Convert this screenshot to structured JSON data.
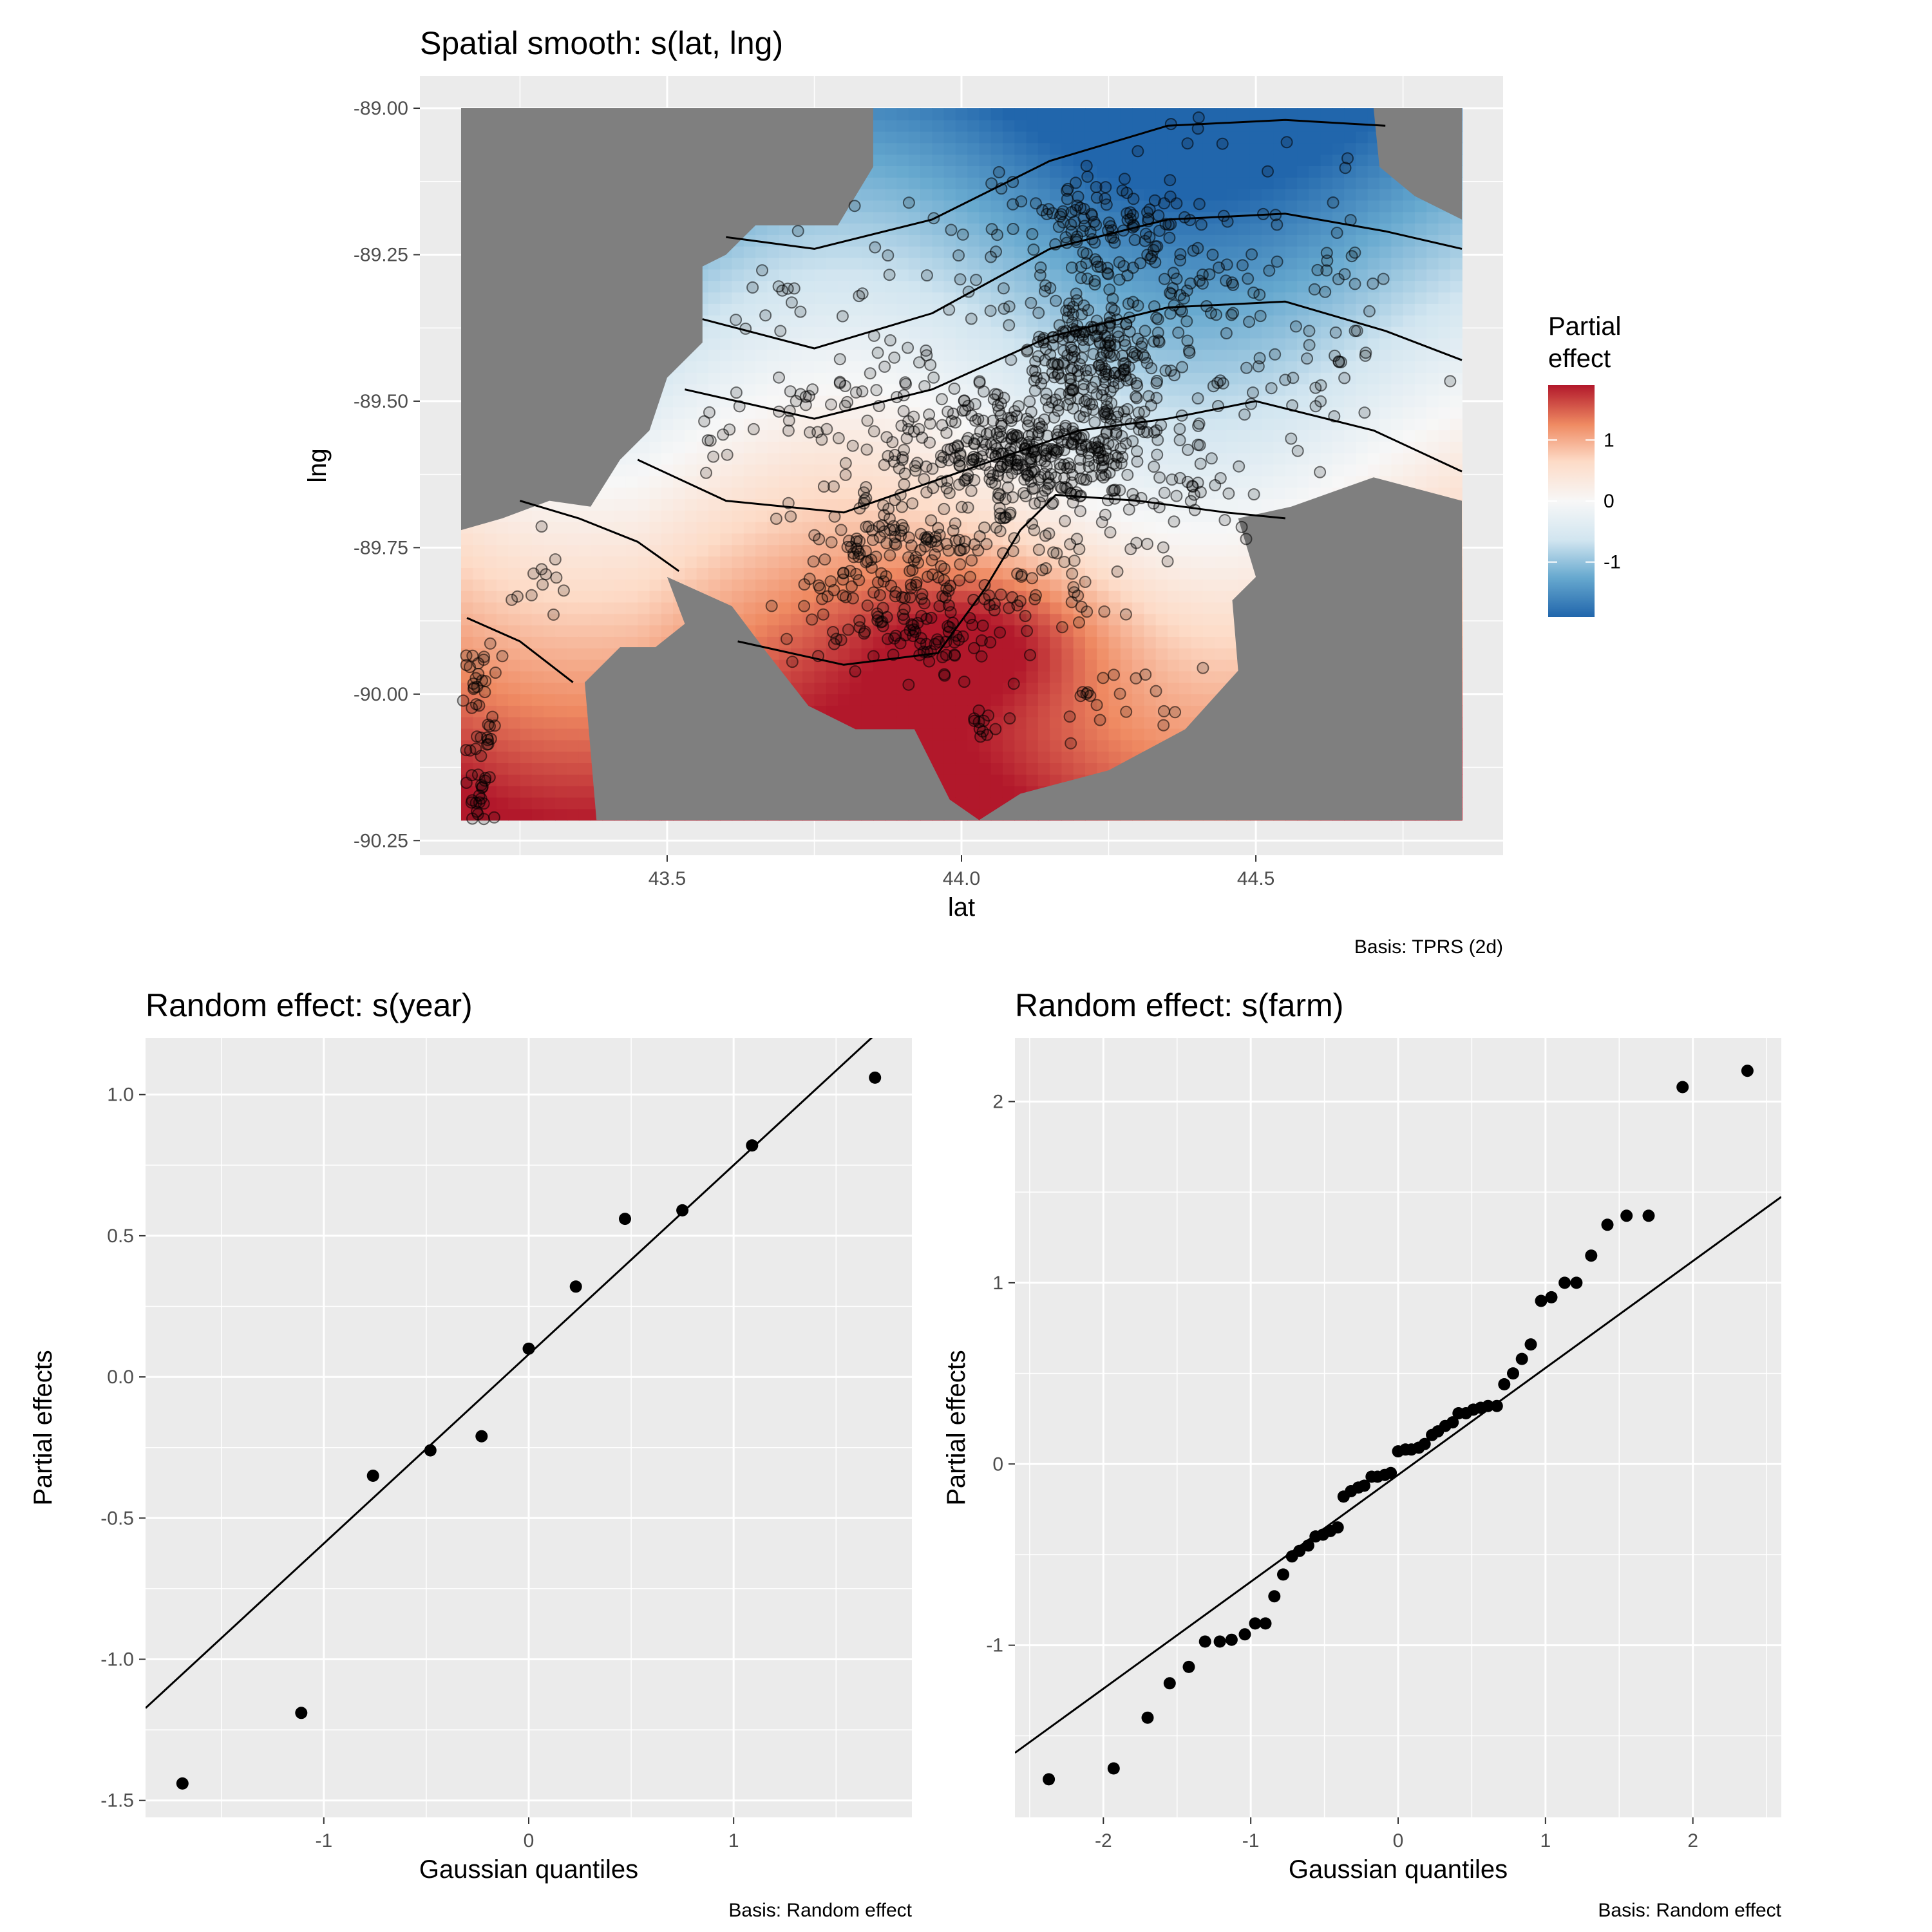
{
  "chart_data": [
    {
      "type": "heatmap",
      "title": "Spatial smooth: s(lat, lng)",
      "xlabel": "lat",
      "ylabel": "lng",
      "caption": "Basis: TPRS (2d)",
      "xlim": [
        43.08,
        44.92
      ],
      "ylim": [
        -90.275,
        -88.945
      ],
      "x_ticks": [
        43.5,
        44.0,
        44.5
      ],
      "x_tick_labels": [
        "43.5",
        "44.0",
        "44.5"
      ],
      "y_ticks": [
        -89.0,
        -89.25,
        -89.5,
        -89.75,
        -90.0,
        -90.25
      ],
      "y_tick_labels": [
        "-89.00",
        "-89.25",
        "-89.50",
        "-89.75",
        "-90.00",
        "-90.25"
      ],
      "legend": {
        "title_lines": [
          "Partial",
          "effect"
        ],
        "range": [
          -1.9,
          1.9
        ],
        "ticks": [
          1,
          0,
          -1
        ],
        "tick_labels": [
          "1",
          "0",
          "-1"
        ],
        "colors": [
          "#b2182b",
          "#ef8a62",
          "#fddbc7",
          "#f7f7f7",
          "#d1e5f0",
          "#67a9cf",
          "#2166ac"
        ],
        "placement": "right"
      },
      "grid": true
    },
    {
      "type": "scatter",
      "title": "Random effect: s(year)",
      "xlabel": "Gaussian quantiles",
      "ylabel": "Partial effects",
      "caption": "Basis: Random effect",
      "xlim": [
        -1.87,
        1.87
      ],
      "ylim": [
        -1.56,
        1.2
      ],
      "x_ticks": [
        -1,
        0,
        1
      ],
      "x_tick_labels": [
        "-1",
        "0",
        "1"
      ],
      "y_ticks": [
        1.0,
        0.5,
        0.0,
        -0.5,
        -1.0,
        -1.5
      ],
      "y_tick_labels": [
        "1.0",
        "0.5",
        "0.0",
        "-0.5",
        "-1.0",
        "-1.5"
      ],
      "points": [
        [
          -1.69,
          -1.44
        ],
        [
          -1.11,
          -1.19
        ],
        [
          -0.76,
          -0.35
        ],
        [
          -0.48,
          -0.26
        ],
        [
          -0.23,
          -0.21
        ],
        [
          0.0,
          0.1
        ],
        [
          0.23,
          0.32
        ],
        [
          0.47,
          0.56
        ],
        [
          0.75,
          0.59
        ],
        [
          1.09,
          0.82
        ],
        [
          1.69,
          1.06
        ]
      ],
      "reference_line": {
        "intercept": 0.08,
        "slope": 0.67
      },
      "grid": true
    },
    {
      "type": "scatter",
      "title": "Random effect: s(farm)",
      "xlabel": "Gaussian quantiles",
      "ylabel": "Partial effects",
      "caption": "Basis: Random effect",
      "xlim": [
        -2.6,
        2.6
      ],
      "ylim": [
        -1.95,
        2.35
      ],
      "x_ticks": [
        -2,
        -1,
        0,
        1,
        2
      ],
      "x_tick_labels": [
        "-2",
        "-1",
        "0",
        "1",
        "2"
      ],
      "y_ticks": [
        2,
        1,
        0,
        -1
      ],
      "y_tick_labels": [
        "2",
        "1",
        "0",
        "-1"
      ],
      "points": [
        [
          -2.37,
          -1.74
        ],
        [
          -1.93,
          -1.68
        ],
        [
          -1.7,
          -1.4
        ],
        [
          -1.55,
          -1.21
        ],
        [
          -1.42,
          -1.12
        ],
        [
          -1.31,
          -0.98
        ],
        [
          -1.21,
          -0.98
        ],
        [
          -1.13,
          -0.97
        ],
        [
          -1.04,
          -0.94
        ],
        [
          -0.97,
          -0.88
        ],
        [
          -0.9,
          -0.88
        ],
        [
          -0.84,
          -0.73
        ],
        [
          -0.78,
          -0.61
        ],
        [
          -0.72,
          -0.51
        ],
        [
          -0.67,
          -0.48
        ],
        [
          -0.61,
          -0.45
        ],
        [
          -0.56,
          -0.4
        ],
        [
          -0.51,
          -0.39
        ],
        [
          -0.46,
          -0.37
        ],
        [
          -0.41,
          -0.35
        ],
        [
          -0.37,
          -0.18
        ],
        [
          -0.32,
          -0.15
        ],
        [
          -0.27,
          -0.13
        ],
        [
          -0.23,
          -0.12
        ],
        [
          -0.18,
          -0.07
        ],
        [
          -0.14,
          -0.07
        ],
        [
          -0.09,
          -0.06
        ],
        [
          -0.05,
          -0.05
        ],
        [
          0.0,
          0.07
        ],
        [
          0.05,
          0.08
        ],
        [
          0.09,
          0.08
        ],
        [
          0.14,
          0.09
        ],
        [
          0.18,
          0.11
        ],
        [
          0.23,
          0.16
        ],
        [
          0.27,
          0.18
        ],
        [
          0.32,
          0.21
        ],
        [
          0.37,
          0.23
        ],
        [
          0.41,
          0.28
        ],
        [
          0.46,
          0.28
        ],
        [
          0.51,
          0.3
        ],
        [
          0.56,
          0.31
        ],
        [
          0.61,
          0.32
        ],
        [
          0.67,
          0.32
        ],
        [
          0.72,
          0.44
        ],
        [
          0.78,
          0.5
        ],
        [
          0.84,
          0.58
        ],
        [
          0.9,
          0.66
        ],
        [
          0.97,
          0.9
        ],
        [
          1.04,
          0.92
        ],
        [
          1.13,
          1.0
        ],
        [
          1.21,
          1.0
        ],
        [
          1.31,
          1.15
        ],
        [
          1.42,
          1.32
        ],
        [
          1.55,
          1.37
        ],
        [
          1.7,
          1.37
        ],
        [
          1.93,
          2.08
        ],
        [
          2.37,
          2.17
        ]
      ],
      "reference_line": {
        "intercept": -0.06,
        "slope": 0.59
      },
      "grid": true
    }
  ]
}
